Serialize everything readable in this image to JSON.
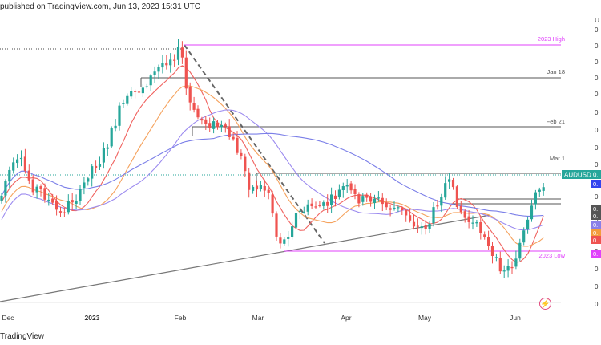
{
  "header": {
    "text": "published on TradingView.com, Jun 13, 2023 15:31 UTC"
  },
  "footer": {
    "brand": "TradingView"
  },
  "colors": {
    "up": "#26a69a",
    "down": "#ef5350",
    "magenta": "#e040fb",
    "dark": "#555555",
    "ma_red": "#f0625f",
    "ma_orange": "#f5a25d",
    "ma_purple": "#9c8bef",
    "ma_blue": "#7b7fe8"
  },
  "chart_data": {
    "type": "candlestick",
    "symbol": "AUDUSD",
    "x_ticks": [
      "Dec",
      "2023",
      "Feb",
      "Mar",
      "Apr",
      "May",
      "Jun"
    ],
    "y_axis": {
      "visible_label": "U",
      "price_labels_truncated": [
        "0.",
        "0.",
        "0.",
        "0.",
        "0.",
        "0.",
        "0.",
        "0.",
        "0.",
        "0.",
        "0.",
        "0.",
        "0.",
        "0.",
        "0.",
        "0.",
        "0.",
        "0."
      ]
    },
    "levels": [
      {
        "label": "2023 High",
        "color": "#e040fb"
      },
      {
        "label": "Jan 18",
        "color": "#555555"
      },
      {
        "label": "Feb 21",
        "color": "#555555"
      },
      {
        "label": "Mar 1",
        "color": "#555555"
      },
      {
        "label": "2023 Low",
        "color": "#e040fb"
      }
    ],
    "price_tags": [
      {
        "text": "AUDUSD 0.",
        "color": "#26a69a"
      },
      {
        "text": "0.",
        "color": "#3344ee"
      },
      {
        "text": "0.",
        "color": "#555555"
      },
      {
        "text": "0.",
        "color": "#555555"
      },
      {
        "text": "0.",
        "color": "#8a7fe8"
      },
      {
        "text": "0.",
        "color": "#f39c3c"
      },
      {
        "text": "0.",
        "color": "#ef5350"
      },
      {
        "text": "0.",
        "color": "#e040fb"
      }
    ],
    "legend": "none",
    "grid": false,
    "candles_note": "daily OHLC, approx. 140 sessions Nov 2022 – Jun 13 2023"
  }
}
